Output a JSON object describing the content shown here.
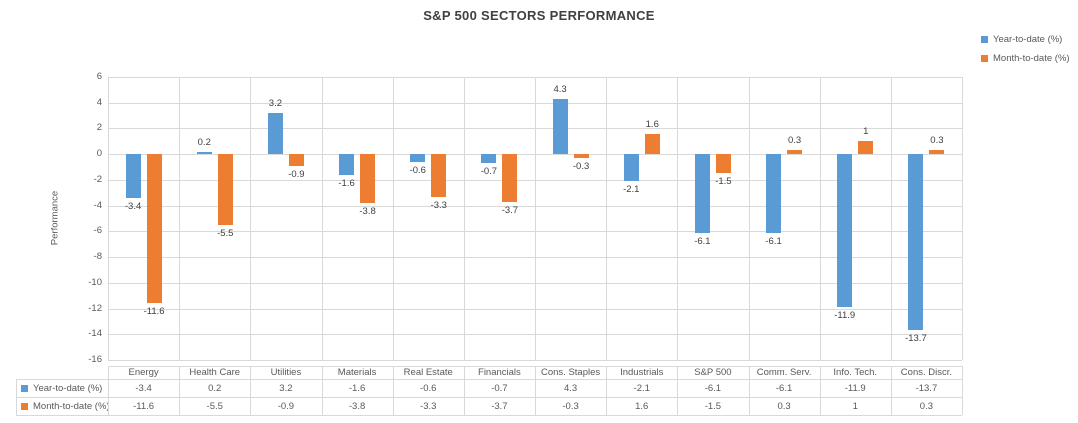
{
  "title": "S&P 500 SECTORS PERFORMANCE",
  "y_axis_title": "Performance",
  "legend": {
    "items": [
      {
        "label": "Year-to-date (%)",
        "color": "#5b9bd5"
      },
      {
        "label": "Month-to-date (%)",
        "color": "#ed7d31"
      }
    ]
  },
  "colors": {
    "series_blue": "#5b9bd5",
    "series_orange": "#ed7d31",
    "gridline": "#d9d9d9",
    "axis_text": "#595959",
    "title_text": "#404040"
  },
  "chart_data": {
    "type": "bar",
    "title": "S&P 500 SECTORS PERFORMANCE",
    "xlabel": "",
    "ylabel": "Performance",
    "categories": [
      "Energy",
      "Health Care",
      "Utilities",
      "Materials",
      "Real Estate",
      "Financials",
      "Cons. Staples",
      "Industrials",
      "S&P 500",
      "Comm. Serv.",
      "Info. Tech.",
      "Cons. Discr."
    ],
    "series": [
      {
        "name": "Year-to-date (%)",
        "color": "#5b9bd5",
        "values": [
          -3.4,
          0.2,
          3.2,
          -1.6,
          -0.6,
          -0.7,
          4.3,
          -2.1,
          -6.1,
          -6.1,
          -11.9,
          -13.7
        ]
      },
      {
        "name": "Month-to-date (%)",
        "color": "#ed7d31",
        "values": [
          -11.6,
          -5.5,
          -0.9,
          -3.8,
          -3.3,
          -3.7,
          -0.3,
          1.6,
          -1.5,
          0.3,
          1,
          0.3
        ]
      }
    ],
    "ylim": [
      -16,
      6
    ],
    "ytick_step": 2,
    "yticks": [
      6,
      4,
      2,
      0,
      -2,
      -4,
      -6,
      -8,
      -10,
      -12,
      -14,
      -16
    ],
    "grid": true,
    "legend_position": "top-right",
    "data_labels": "outside-end",
    "data_table_shown": true
  }
}
